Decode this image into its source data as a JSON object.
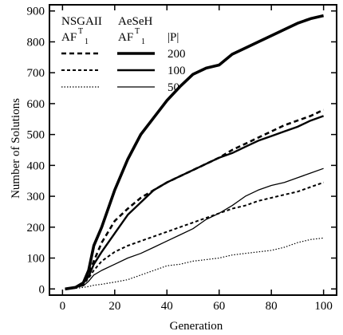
{
  "chart_data": {
    "type": "line",
    "xlabel": "Generation",
    "ylabel": "Number of Solutions",
    "xlim": [
      -5,
      105
    ],
    "ylim": [
      -20,
      920
    ],
    "xticks": [
      0,
      20,
      40,
      60,
      80,
      100
    ],
    "yticks": [
      0,
      100,
      200,
      300,
      400,
      500,
      600,
      700,
      800,
      900
    ],
    "grid": false,
    "legend": {
      "placement": "top-left",
      "col1_header": "NSGAII",
      "col1_af": "AF",
      "col2_header": "AeSeH",
      "col2_af": "AF",
      "af_sup": "T",
      "af_sub": "1",
      "p_header": "|P|",
      "rows": [
        "200",
        "100",
        "50"
      ]
    },
    "series": [
      {
        "name": "AeSeH 200",
        "style": "thick-solid",
        "x": [
          1,
          5,
          8,
          10,
          12,
          15,
          20,
          25,
          30,
          35,
          40,
          45,
          50,
          55,
          60,
          65,
          70,
          75,
          80,
          85,
          90,
          95,
          100
        ],
        "y": [
          0,
          5,
          20,
          60,
          140,
          200,
          320,
          420,
          500,
          555,
          610,
          655,
          695,
          715,
          725,
          760,
          780,
          800,
          820,
          840,
          860,
          875,
          885
        ]
      },
      {
        "name": "NSGAII 200",
        "style": "thick-dash",
        "x": [
          1,
          5,
          8,
          10,
          12,
          15,
          20,
          25,
          30,
          35,
          40,
          45,
          50,
          55,
          60,
          65,
          70,
          75,
          80,
          85,
          90,
          95,
          100
        ],
        "y": [
          0,
          5,
          20,
          50,
          90,
          150,
          220,
          260,
          295,
          320,
          345,
          365,
          385,
          405,
          425,
          450,
          470,
          490,
          510,
          530,
          545,
          560,
          580
        ]
      },
      {
        "name": "AeSeH 100",
        "style": "medium-solid",
        "x": [
          1,
          5,
          8,
          10,
          12,
          15,
          20,
          25,
          30,
          35,
          40,
          45,
          50,
          55,
          60,
          65,
          70,
          75,
          80,
          85,
          90,
          95,
          100
        ],
        "y": [
          0,
          5,
          20,
          40,
          80,
          120,
          180,
          240,
          280,
          320,
          345,
          365,
          385,
          405,
          425,
          440,
          460,
          480,
          495,
          510,
          525,
          545,
          560
        ]
      },
      {
        "name": "NSGAII 100",
        "style": "medium-dash",
        "x": [
          1,
          5,
          8,
          10,
          12,
          15,
          20,
          25,
          30,
          35,
          40,
          45,
          50,
          55,
          60,
          65,
          70,
          75,
          80,
          85,
          90,
          95,
          100
        ],
        "y": [
          0,
          5,
          15,
          35,
          60,
          90,
          120,
          140,
          155,
          170,
          185,
          200,
          215,
          230,
          245,
          260,
          270,
          285,
          295,
          305,
          315,
          330,
          345
        ]
      },
      {
        "name": "AeSeH 50",
        "style": "thin-solid",
        "x": [
          1,
          5,
          8,
          10,
          12,
          15,
          20,
          25,
          30,
          35,
          40,
          45,
          50,
          55,
          60,
          65,
          70,
          75,
          80,
          85,
          90,
          95,
          100
        ],
        "y": [
          0,
          5,
          10,
          25,
          45,
          60,
          80,
          100,
          115,
          135,
          155,
          175,
          195,
          225,
          245,
          270,
          300,
          320,
          335,
          345,
          360,
          375,
          390
        ]
      },
      {
        "name": "NSGAII 50",
        "style": "thin-dot",
        "x": [
          1,
          5,
          8,
          10,
          12,
          15,
          20,
          25,
          30,
          35,
          40,
          45,
          50,
          55,
          60,
          65,
          70,
          75,
          80,
          85,
          90,
          95,
          100
        ],
        "y": [
          0,
          2,
          5,
          8,
          12,
          15,
          22,
          30,
          45,
          60,
          75,
          80,
          90,
          95,
          100,
          110,
          115,
          120,
          125,
          135,
          150,
          160,
          165
        ]
      }
    ]
  }
}
